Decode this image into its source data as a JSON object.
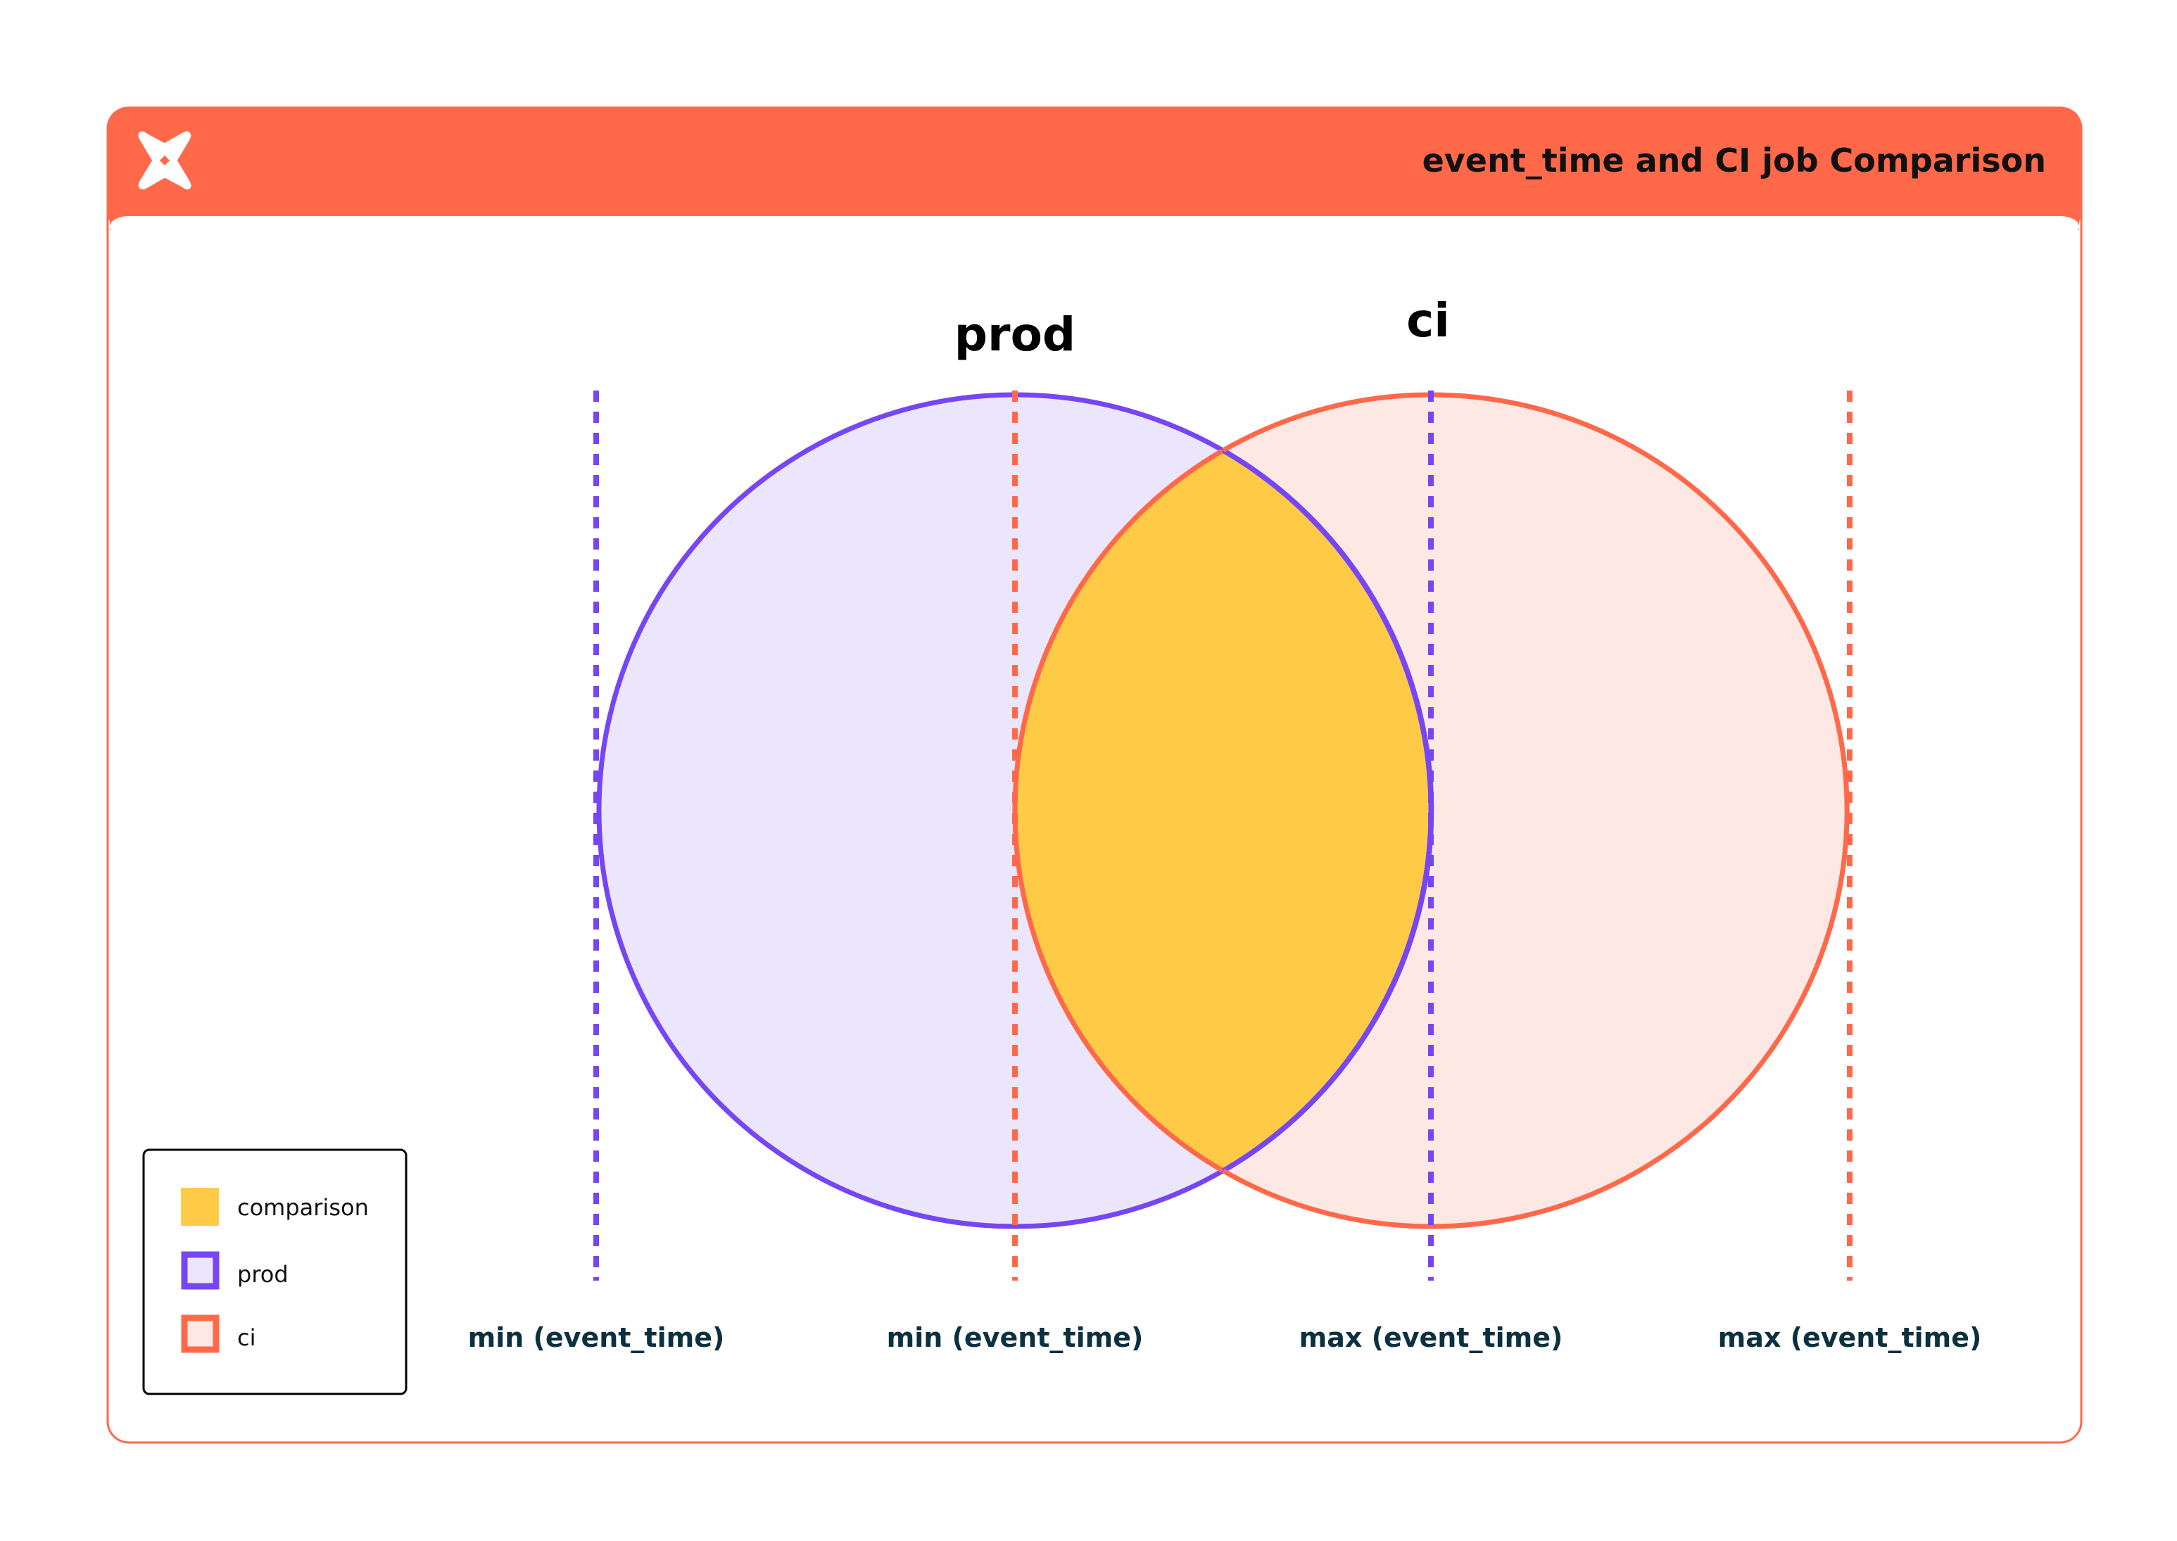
{
  "header": {
    "title": "event_time and CI job Comparison",
    "logo": "dbt-logo-icon"
  },
  "colors": {
    "accent": "#ff694a",
    "prod_stroke": "#7646f5",
    "prod_fill": "#ece6fc",
    "ci_stroke": "#ff694a",
    "ci_fill": "#fde8e3",
    "comparison_fill": "#ffcb47",
    "label_text": "#0b3140"
  },
  "diagram": {
    "sets": [
      {
        "label": "prod"
      },
      {
        "label": "ci"
      }
    ],
    "boundaries": [
      {
        "label": "min (event_time)",
        "set": "prod"
      },
      {
        "label": "min (event_time)",
        "set": "ci"
      },
      {
        "label": "max (event_time)",
        "set": "prod"
      },
      {
        "label": "max (event_time)",
        "set": "ci"
      }
    ]
  },
  "legend": {
    "items": [
      {
        "label": "comparison"
      },
      {
        "label": "prod"
      },
      {
        "label": "ci"
      }
    ]
  }
}
